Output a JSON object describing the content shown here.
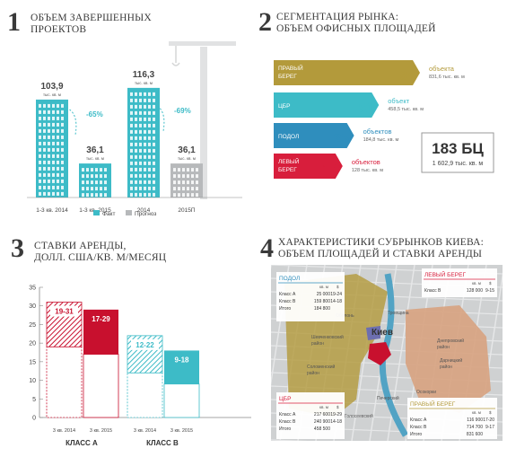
{
  "panel1": {
    "number": "1",
    "title": "ОБЪЕМ ЗАВЕРШЕННЫХ\nПРОЕКТОВ",
    "unit": "тыс. кв. м",
    "legend": {
      "fact": "Факт",
      "forecast": "Прогноз"
    },
    "colors": {
      "fact": "#3dbbc7",
      "forecast": "#b7b9bb"
    },
    "chart_data": {
      "type": "bar",
      "categories": [
        "1-3 кв. 2014",
        "1-3 кв. 2015",
        "2014",
        "2015П"
      ],
      "values": [
        103.9,
        36.1,
        116.3,
        36.1
      ],
      "labels": [
        "103,9",
        "36,1",
        "116,3",
        "36,1"
      ],
      "series_type": [
        "fact",
        "fact",
        "fact",
        "forecast"
      ],
      "changes": [
        "-65%",
        "-69%"
      ]
    }
  },
  "panel2": {
    "number": "2",
    "title": "СЕГМЕНТАЦИЯ РЫНКА:\nОБЪЕМ ОФИСНЫХ ПЛОЩАДЕЙ",
    "total": {
      "value": "183 БЦ",
      "area": "1 602,9 тыс. кв. м"
    },
    "chart_data": {
      "type": "bar",
      "categories": [
        "ПРАВЫЙ БЕРЕГ",
        "ЦБР",
        "ПОДОЛ",
        "ЛЕВЫЙ БЕРЕГ"
      ],
      "values": [
        94,
        51,
        25,
        13
      ],
      "count_labels": [
        "объекта",
        "объект",
        "объектов",
        "объектов"
      ],
      "areas": [
        "831,6 тыс. кв. м",
        "458,5 тыс. кв. м",
        "184,8 тыс. кв. м",
        "128 тыс. кв. м"
      ],
      "colors": [
        "#b39a3b",
        "#3dbbc7",
        "#2f8ebd",
        "#d81e3c"
      ]
    }
  },
  "panel3": {
    "number": "3",
    "title": "СТАВКИ АРЕНДЫ,\nДОЛЛ. США/КВ. М/МЕСЯЦ",
    "chart_data": {
      "type": "bar",
      "yticks": [
        0,
        5,
        10,
        15,
        20,
        25,
        30,
        35
      ],
      "ylim": [
        0,
        35
      ],
      "groups": [
        "КЛАСС А",
        "КЛАСС B"
      ],
      "bars": [
        {
          "group": "КЛАСС А",
          "period": "3 кв. 2014",
          "low": 19,
          "high": 31,
          "label": "19-31",
          "color": "#c8102e",
          "hatched": true
        },
        {
          "group": "КЛАСС А",
          "period": "3 кв. 2015",
          "low": 17,
          "high": 29,
          "label": "17-29",
          "color": "#c8102e",
          "hatched": false
        },
        {
          "group": "КЛАСС B",
          "period": "3 кв. 2014",
          "low": 12,
          "high": 22,
          "label": "12-22",
          "color": "#3dbbc7",
          "hatched": true
        },
        {
          "group": "КЛАСС B",
          "period": "3 кв. 2015",
          "low": 9,
          "high": 18,
          "label": "9-18",
          "color": "#3dbbc7",
          "hatched": false
        }
      ]
    }
  },
  "panel4": {
    "number": "4",
    "title": "ХАРАКТЕРИСТИКИ СУБРЫНКОВ КИЕВА:\nОБЪЕМ ПЛОЩАДЕЙ И СТАВКИ АРЕНДЫ",
    "city": "Киев",
    "districts": [
      "Оболонь",
      "Шевченковский район",
      "Соломенский район",
      "Голосеевский",
      "Печерский",
      "Троещина",
      "Днепровский район",
      "Дарницкий район",
      "Осокорки"
    ],
    "tables": [
      {
        "name": "ПОДОЛ",
        "color": "#2f8ebd",
        "head": [
          "кв. м",
          "$"
        ],
        "rows": [
          [
            "Класс A",
            "25 000",
            "19-24"
          ],
          [
            "Класс B",
            "159 800",
            "14-18"
          ],
          [
            "Итого",
            "184 800",
            ""
          ]
        ]
      },
      {
        "name": "ЛЕВЫЙ БЕРЕГ",
        "color": "#d81e3c",
        "head": [
          "кв. м",
          "$"
        ],
        "rows": [
          [
            "Класс B",
            "128 000",
            "9-15"
          ]
        ]
      },
      {
        "name": "ЦБР",
        "color": "#d81e3c",
        "head": [
          "кв. м",
          "$"
        ],
        "rows": [
          [
            "Класс A",
            "217 600",
            "19-29"
          ],
          [
            "Класс B",
            "240 900",
            "14-18"
          ],
          [
            "Итого",
            "458 500",
            ""
          ]
        ]
      },
      {
        "name": "ПРАВЫЙ БЕРЕГ",
        "color": "#b39a3b",
        "head": [
          "кв. м",
          "$"
        ],
        "rows": [
          [
            "Класс A",
            "116 900",
            "17-20"
          ],
          [
            "Класс B",
            "714 700",
            "9-17"
          ],
          [
            "Итого",
            "831 600",
            ""
          ]
        ]
      }
    ]
  }
}
